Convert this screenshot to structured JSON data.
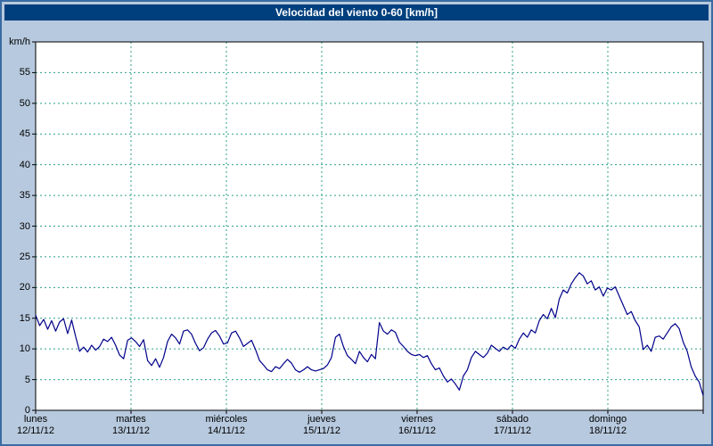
{
  "title": "Velocidad del viento 0-60 [km/h]",
  "colors": {
    "frame_bg": "#b7c9de",
    "frame_border": "#3a6ba3",
    "titlebar_bg": "#003f7d",
    "titlebar_text": "#ffffff",
    "plot_bg": "#ffffff",
    "grid": "#2ca089",
    "series": "#00008b",
    "axis": "#000000",
    "text": "#000000"
  },
  "chart_data": {
    "type": "line",
    "title": "Velocidad del viento 0-60 [km/h]",
    "xlabel": "",
    "ylabel": "km/h",
    "ylim": [
      0,
      60
    ],
    "ytick_step": 5,
    "grid": true,
    "legend_position": "none",
    "series_name": "Velocidad del viento",
    "x_days": [
      {
        "name": "lunes",
        "date": "12/11/12"
      },
      {
        "name": "martes",
        "date": "13/11/12"
      },
      {
        "name": "miércoles",
        "date": "14/11/12"
      },
      {
        "name": "jueves",
        "date": "15/11/12"
      },
      {
        "name": "viernes",
        "date": "16/11/12"
      },
      {
        "name": "sábado",
        "date": "17/11/12"
      },
      {
        "name": "domingo",
        "date": "18/11/12"
      }
    ],
    "samples_per_day": 24,
    "values": [
      15.5,
      13.8,
      14.8,
      13.2,
      14.6,
      12.9,
      14.4,
      14.9,
      12.5,
      14.7,
      12.0,
      9.6,
      10.3,
      9.5,
      10.6,
      9.8,
      10.4,
      11.6,
      11.2,
      11.9,
      10.6,
      9.0,
      8.4,
      11.4,
      11.8,
      11.2,
      10.4,
      11.5,
      8.1,
      7.3,
      8.4,
      7.0,
      8.6,
      11.2,
      12.4,
      11.8,
      10.8,
      12.9,
      13.1,
      12.4,
      10.9,
      9.7,
      10.2,
      11.6,
      12.6,
      13.0,
      12.1,
      10.8,
      11.0,
      12.6,
      12.9,
      11.8,
      10.4,
      10.9,
      11.4,
      9.9,
      8.1,
      7.4,
      6.6,
      6.3,
      7.1,
      6.8,
      7.6,
      8.3,
      7.7,
      6.6,
      6.2,
      6.6,
      7.1,
      6.6,
      6.4,
      6.6,
      6.8,
      7.4,
      8.6,
      11.9,
      12.4,
      10.4,
      8.9,
      8.3,
      7.6,
      9.6,
      8.6,
      7.9,
      9.1,
      8.4,
      14.3,
      12.9,
      12.4,
      13.1,
      12.7,
      11.1,
      10.4,
      9.6,
      9.1,
      8.9,
      9.1,
      8.6,
      8.9,
      7.6,
      6.6,
      6.9,
      5.6,
      4.6,
      5.1,
      4.3,
      3.3,
      5.6,
      6.6,
      8.6,
      9.6,
      9.1,
      8.6,
      9.3,
      10.6,
      10.1,
      9.6,
      10.3,
      9.9,
      10.6,
      10.1,
      11.6,
      12.6,
      11.9,
      13.1,
      12.6,
      14.6,
      15.6,
      14.9,
      16.6,
      15.1,
      18.1,
      19.6,
      19.1,
      20.6,
      21.6,
      22.4,
      21.9,
      20.6,
      21.1,
      19.6,
      20.1,
      18.6,
      19.9,
      19.6,
      20.1,
      18.6,
      17.1,
      15.6,
      16.1,
      14.6,
      13.6,
      9.9,
      10.6,
      9.6,
      11.9,
      12.1,
      11.6,
      12.6,
      13.6,
      14.1,
      13.3,
      11.1,
      9.6,
      7.1,
      5.6,
      4.6,
      2.4
    ]
  }
}
